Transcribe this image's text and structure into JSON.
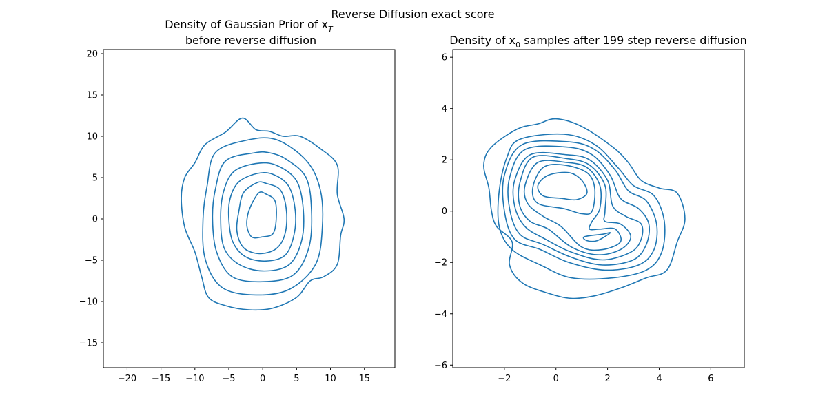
{
  "figure": {
    "suptitle": "Reverse Diffusion exact score",
    "line_color": "#1f77b4"
  },
  "chart_data": [
    {
      "type": "contour",
      "title_line1_prefix": "Density of Gaussian Prior of x",
      "title_line1_subscript": "T",
      "title_line2": "before reverse diffusion",
      "xlabel": "",
      "ylabel": "",
      "xlim": [
        -23.5,
        19.5
      ],
      "ylim": [
        -18,
        20.5
      ],
      "xticks": [
        -20,
        -15,
        -10,
        -5,
        0,
        5,
        10,
        15
      ],
      "yticks": [
        -15,
        -10,
        -5,
        0,
        5,
        10,
        15,
        20
      ],
      "grid": false,
      "levels": [
        {
          "points": [
            [
              -0.5,
              3.2
            ],
            [
              -1.5,
              2.0
            ],
            [
              -2.2,
              0.5
            ],
            [
              -2.3,
              -1.0
            ],
            [
              -1.6,
              -2.2
            ],
            [
              -0.2,
              -2.2
            ],
            [
              1.5,
              -1.8
            ],
            [
              2.0,
              0.0
            ],
            [
              1.8,
              2.2
            ],
            [
              0.5,
              3.0
            ]
          ]
        },
        {
          "points": [
            [
              -0.8,
              4.4
            ],
            [
              -2.8,
              3.2
            ],
            [
              -3.5,
              1.0
            ],
            [
              -3.8,
              -1.5
            ],
            [
              -2.8,
              -3.5
            ],
            [
              -0.5,
              -4.2
            ],
            [
              2.0,
              -3.6
            ],
            [
              3.3,
              -1.8
            ],
            [
              3.5,
              1.0
            ],
            [
              2.6,
              3.5
            ],
            [
              0.5,
              4.3
            ]
          ]
        },
        {
          "points": [
            [
              -0.8,
              5.5
            ],
            [
              -3.5,
              4.5
            ],
            [
              -4.8,
              2.5
            ],
            [
              -5.0,
              0.0
            ],
            [
              -4.4,
              -2.8
            ],
            [
              -2.5,
              -4.6
            ],
            [
              0.5,
              -5.1
            ],
            [
              3.3,
              -4.4
            ],
            [
              4.6,
              -2.0
            ],
            [
              4.8,
              1.0
            ],
            [
              3.8,
              4.0
            ],
            [
              1.5,
              5.4
            ]
          ]
        },
        {
          "points": [
            [
              -1.0,
              6.7
            ],
            [
              -4.3,
              5.7
            ],
            [
              -5.8,
              3.2
            ],
            [
              -6.2,
              0.0
            ],
            [
              -5.7,
              -3.5
            ],
            [
              -3.5,
              -5.5
            ],
            [
              0.0,
              -6.3
            ],
            [
              3.8,
              -5.6
            ],
            [
              5.7,
              -2.8
            ],
            [
              6.0,
              1.0
            ],
            [
              5.0,
              4.6
            ],
            [
              2.0,
              6.5
            ]
          ]
        },
        {
          "points": [
            [
              -1.2,
              8.0
            ],
            [
              -5.5,
              7.0
            ],
            [
              -7.0,
              3.5
            ],
            [
              -7.4,
              0.0
            ],
            [
              -6.8,
              -4.0
            ],
            [
              -4.5,
              -7.0
            ],
            [
              0.0,
              -7.6
            ],
            [
              4.5,
              -6.8
            ],
            [
              6.8,
              -3.5
            ],
            [
              7.2,
              1.0
            ],
            [
              6.4,
              5.0
            ],
            [
              3.5,
              7.2
            ],
            [
              1.0,
              8.0
            ]
          ]
        },
        {
          "points": [
            [
              -2.5,
              9.5
            ],
            [
              -7.0,
              8.0
            ],
            [
              -8.2,
              4.0
            ],
            [
              -8.8,
              0.0
            ],
            [
              -8.5,
              -4.8
            ],
            [
              -6.0,
              -8.3
            ],
            [
              -1.0,
              -9.2
            ],
            [
              4.0,
              -8.5
            ],
            [
              7.8,
              -5.5
            ],
            [
              8.8,
              -1.0
            ],
            [
              8.5,
              3.5
            ],
            [
              6.5,
              7.0
            ],
            [
              2.0,
              9.6
            ]
          ]
        },
        {
          "points": [
            [
              -3.0,
              12.2
            ],
            [
              -5.5,
              10.5
            ],
            [
              -8.5,
              9.0
            ],
            [
              -10.0,
              6.8
            ],
            [
              -11.5,
              5.0
            ],
            [
              -12.0,
              2.5
            ],
            [
              -11.5,
              -1.0
            ],
            [
              -10.0,
              -4.0
            ],
            [
              -9.0,
              -7.0
            ],
            [
              -8.0,
              -9.5
            ],
            [
              -5.5,
              -10.5
            ],
            [
              -2.0,
              -11.0
            ],
            [
              1.5,
              -10.8
            ],
            [
              5.0,
              -9.5
            ],
            [
              7.0,
              -7.5
            ],
            [
              9.0,
              -7.0
            ],
            [
              11.0,
              -5.5
            ],
            [
              11.5,
              -2.0
            ],
            [
              12.0,
              0.0
            ],
            [
              11.0,
              3.0
            ],
            [
              11.0,
              6.5
            ],
            [
              8.5,
              8.5
            ],
            [
              5.5,
              10.0
            ],
            [
              3.0,
              10.0
            ],
            [
              1.0,
              10.6
            ],
            [
              -1.0,
              10.8
            ]
          ]
        }
      ]
    },
    {
      "type": "contour",
      "title_prefix": "Density of x",
      "title_subscript": "0",
      "title_suffix": " samples after 199 step reverse diffusion",
      "xlabel": "",
      "ylabel": "",
      "xlim": [
        -4.0,
        7.3
      ],
      "ylim": [
        -6.1,
        6.3
      ],
      "xticks": [
        -2,
        0,
        2,
        4,
        6
      ],
      "yticks": [
        -6,
        -4,
        -2,
        0,
        2,
        4,
        6
      ],
      "grid": false,
      "levels": [
        {
          "points": [
            [
              -0.3,
              1.4
            ],
            [
              0.5,
              1.5
            ],
            [
              1.0,
              1.2
            ],
            [
              1.2,
              0.7
            ],
            [
              0.8,
              0.45
            ],
            [
              0.2,
              0.5
            ],
            [
              -0.5,
              0.6
            ],
            [
              -0.7,
              1.0
            ]
          ]
        },
        {
          "points": [
            [
              1.1,
              -1.0
            ],
            [
              1.8,
              -0.9
            ],
            [
              2.1,
              -0.85
            ],
            [
              1.6,
              -1.15
            ],
            [
              1.2,
              -1.15
            ]
          ]
        },
        {
          "points": [
            [
              -0.5,
              1.7
            ],
            [
              0.3,
              1.8
            ],
            [
              1.2,
              1.5
            ],
            [
              1.5,
              0.9
            ],
            [
              1.4,
              0.0
            ],
            [
              1.0,
              -0.1
            ],
            [
              0.3,
              0.1
            ],
            [
              -0.7,
              0.3
            ],
            [
              -0.9,
              0.9
            ]
          ]
        },
        {
          "points": [
            [
              -0.7,
              1.9
            ],
            [
              0.4,
              1.9
            ],
            [
              1.2,
              1.7
            ],
            [
              1.7,
              1.0
            ],
            [
              1.7,
              0.1
            ],
            [
              1.4,
              -0.4
            ],
            [
              1.3,
              -0.7
            ],
            [
              1.7,
              -0.7
            ],
            [
              2.3,
              -0.7
            ],
            [
              2.5,
              -1.2
            ],
            [
              1.8,
              -1.5
            ],
            [
              1.0,
              -1.4
            ],
            [
              0.2,
              -0.6
            ],
            [
              -0.5,
              -0.2
            ],
            [
              -1.1,
              0.3
            ],
            [
              -1.2,
              1.0
            ]
          ]
        },
        {
          "points": [
            [
              -0.9,
              2.1
            ],
            [
              0.4,
              2.05
            ],
            [
              1.3,
              1.8
            ],
            [
              1.9,
              1.0
            ],
            [
              1.9,
              0.0
            ],
            [
              1.9,
              -0.4
            ],
            [
              2.5,
              -0.5
            ],
            [
              2.9,
              -1.0
            ],
            [
              2.5,
              -1.5
            ],
            [
              1.6,
              -1.7
            ],
            [
              0.6,
              -1.4
            ],
            [
              -0.3,
              -0.7
            ],
            [
              -1.0,
              -0.4
            ],
            [
              -1.4,
              0.2
            ],
            [
              -1.4,
              1.1
            ]
          ]
        },
        {
          "points": [
            [
              -1.0,
              2.2
            ],
            [
              0.4,
              2.2
            ],
            [
              1.3,
              2.0
            ],
            [
              2.0,
              1.2
            ],
            [
              2.2,
              0.2
            ],
            [
              2.7,
              -0.2
            ],
            [
              3.3,
              -0.5
            ],
            [
              3.3,
              -1.1
            ],
            [
              2.9,
              -1.6
            ],
            [
              1.8,
              -1.9
            ],
            [
              0.6,
              -1.6
            ],
            [
              -0.4,
              -1.1
            ],
            [
              -1.2,
              -0.6
            ],
            [
              -1.6,
              0.2
            ],
            [
              -1.6,
              1.2
            ]
          ]
        },
        {
          "points": [
            [
              -1.2,
              2.4
            ],
            [
              0.4,
              2.5
            ],
            [
              1.4,
              2.2
            ],
            [
              2.1,
              1.4
            ],
            [
              2.5,
              0.5
            ],
            [
              3.2,
              0.1
            ],
            [
              3.6,
              -0.5
            ],
            [
              3.5,
              -1.3
            ],
            [
              3.0,
              -1.9
            ],
            [
              1.8,
              -2.1
            ],
            [
              0.6,
              -1.8
            ],
            [
              -0.5,
              -1.3
            ],
            [
              -1.4,
              -0.9
            ],
            [
              -1.8,
              0.1
            ],
            [
              -1.8,
              1.3
            ]
          ]
        },
        {
          "points": [
            [
              -1.3,
              2.6
            ],
            [
              0.5,
              2.7
            ],
            [
              1.5,
              2.4
            ],
            [
              2.3,
              1.6
            ],
            [
              2.8,
              0.8
            ],
            [
              3.5,
              0.4
            ],
            [
              3.9,
              -0.5
            ],
            [
              3.8,
              -1.5
            ],
            [
              3.2,
              -2.1
            ],
            [
              1.9,
              -2.3
            ],
            [
              0.5,
              -2.0
            ],
            [
              -0.6,
              -1.5
            ],
            [
              -1.6,
              -1.1
            ],
            [
              -2.0,
              0.0
            ],
            [
              -2.0,
              1.4
            ]
          ]
        },
        {
          "points": [
            [
              -1.4,
              2.8
            ],
            [
              0.3,
              3.0
            ],
            [
              1.5,
              2.6
            ],
            [
              2.4,
              1.7
            ],
            [
              3.0,
              1.0
            ],
            [
              3.8,
              0.6
            ],
            [
              4.2,
              -0.4
            ],
            [
              4.1,
              -1.6
            ],
            [
              3.5,
              -2.3
            ],
            [
              2.2,
              -2.6
            ],
            [
              0.6,
              -2.6
            ],
            [
              -0.6,
              -2.1
            ],
            [
              -1.7,
              -1.5
            ],
            [
              -2.2,
              -0.6
            ],
            [
              -2.2,
              0.8
            ],
            [
              -1.9,
              2.1
            ]
          ]
        },
        {
          "points": [
            [
              -2.5,
              2.5
            ],
            [
              -1.5,
              3.2
            ],
            [
              -0.7,
              3.4
            ],
            [
              0.0,
              3.6
            ],
            [
              1.0,
              3.3
            ],
            [
              2.2,
              2.5
            ],
            [
              2.8,
              1.9
            ],
            [
              3.3,
              1.2
            ],
            [
              4.0,
              0.9
            ],
            [
              4.7,
              0.7
            ],
            [
              5.0,
              -0.3
            ],
            [
              4.7,
              -1.2
            ],
            [
              4.3,
              -2.3
            ],
            [
              3.5,
              -2.6
            ],
            [
              2.5,
              -3.0
            ],
            [
              1.5,
              -3.3
            ],
            [
              0.6,
              -3.4
            ],
            [
              -0.3,
              -3.2
            ],
            [
              -1.3,
              -2.8
            ],
            [
              -1.8,
              -2.1
            ],
            [
              -1.7,
              -1.2
            ],
            [
              -2.3,
              -0.6
            ],
            [
              -2.5,
              0.0
            ],
            [
              -2.6,
              0.9
            ],
            [
              -2.8,
              1.8
            ]
          ]
        }
      ]
    }
  ]
}
